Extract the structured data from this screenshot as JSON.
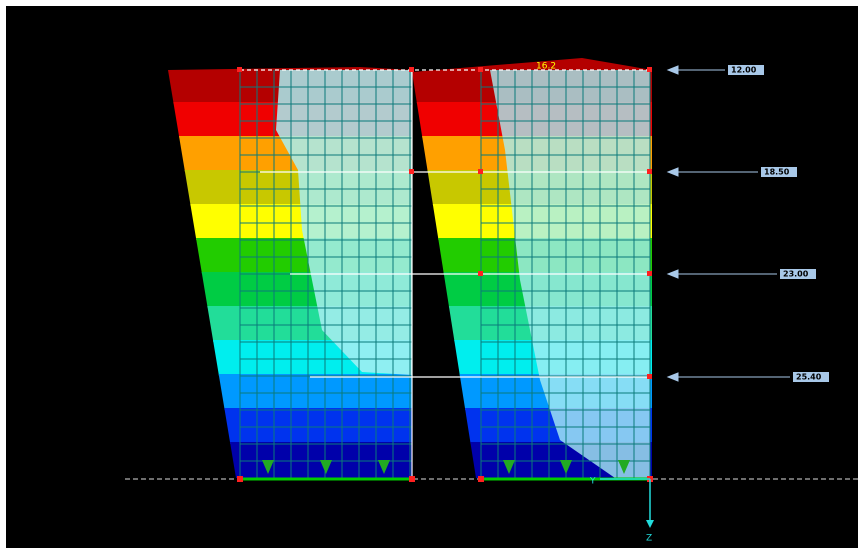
{
  "view": {
    "top_value": "16.2",
    "loads": [
      "12.00",
      "18.50",
      "23.00",
      "25.40"
    ],
    "axis_y": "Y",
    "axis_z": "Z"
  }
}
